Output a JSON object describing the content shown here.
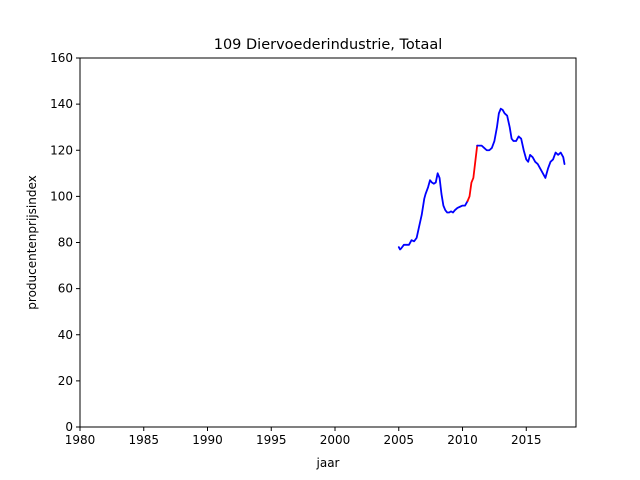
{
  "chart_data": {
    "type": "line",
    "title": "109 Diervoederindustrie, Totaal",
    "xlabel": "jaar",
    "ylabel": "producentenprijsindex",
    "xlim": [
      1980,
      2018.9
    ],
    "ylim": [
      0,
      160
    ],
    "xticks": [
      1980,
      1985,
      1990,
      1995,
      2000,
      2005,
      2010,
      2015
    ],
    "yticks": [
      0,
      20,
      40,
      60,
      80,
      100,
      120,
      140,
      160
    ],
    "grid": false,
    "legend": "none",
    "series": [
      {
        "color": "#0000ff",
        "x": [
          2005.0,
          2005.1,
          2005.2,
          2005.4,
          2005.6,
          2005.8,
          2006.0,
          2006.2,
          2006.4,
          2006.6,
          2006.8,
          2007.0,
          2007.1,
          2007.3,
          2007.45,
          2007.6,
          2007.75,
          2007.9,
          2008.05,
          2008.2,
          2008.35,
          2008.5,
          2008.65,
          2008.8,
          2008.95,
          2009.1,
          2009.25,
          2009.4,
          2009.6,
          2009.8,
          2010.0,
          2010.2,
          2010.4
        ],
        "y": [
          78,
          77,
          77.5,
          79,
          79,
          79,
          81,
          80.5,
          82,
          87,
          92,
          99,
          101,
          104,
          107,
          106,
          105.5,
          106,
          110,
          108,
          101,
          96,
          94,
          93,
          93,
          93.5,
          93,
          94,
          95,
          95.5,
          96,
          96,
          98
        ]
      },
      {
        "color": "#ff0000",
        "x": [
          2010.4,
          2010.55,
          2010.7,
          2010.85,
          2011.0,
          2011.15
        ],
        "y": [
          98,
          100,
          106,
          108,
          115,
          122
        ]
      },
      {
        "color": "#0000ff",
        "x": [
          2011.15,
          2011.3,
          2011.5,
          2011.7,
          2011.9,
          2012.1,
          2012.3,
          2012.5,
          2012.7,
          2012.85,
          2013.0,
          2013.15,
          2013.3,
          2013.5,
          2013.7,
          2013.85,
          2014.0,
          2014.2,
          2014.4,
          2014.6,
          2014.8,
          2015.0,
          2015.15,
          2015.3,
          2015.5,
          2015.7,
          2015.9,
          2016.1,
          2016.3,
          2016.5,
          2016.7,
          2016.9,
          2017.1,
          2017.3,
          2017.5,
          2017.7,
          2017.9,
          2018.0
        ],
        "y": [
          122,
          122,
          122,
          121,
          120,
          120,
          121,
          124,
          130,
          136,
          138,
          137.5,
          136,
          135,
          130,
          125,
          124,
          124,
          126,
          125,
          120,
          116,
          115,
          118,
          117,
          115,
          114,
          112,
          110,
          108,
          112,
          115,
          116,
          119,
          118,
          119,
          117,
          114
        ]
      }
    ]
  }
}
